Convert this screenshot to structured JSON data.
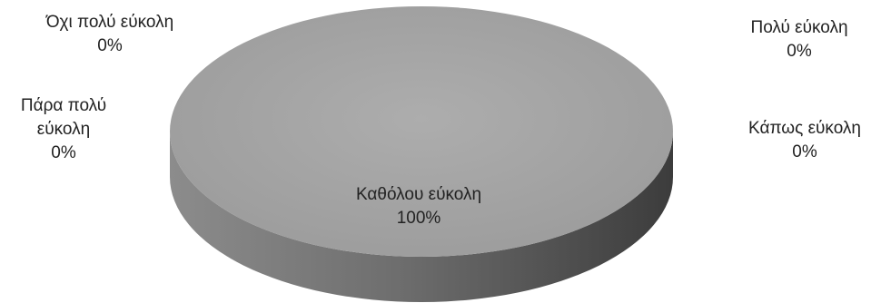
{
  "chart_data": {
    "type": "pie",
    "style": "3d",
    "legend": "none",
    "colors": {
      "slice_top": "#a6a6a6",
      "slice_side_dark": "#3c3c3c",
      "slice_side_light": "#8c8c8c",
      "label_text": "#222222"
    },
    "slices": [
      {
        "label": [
          "Όχι πολύ εύκολη"
        ],
        "value": 0,
        "percent_label": "0%"
      },
      {
        "label": [
          "Πολύ εύκολη"
        ],
        "value": 0,
        "percent_label": "0%"
      },
      {
        "label": [
          "Πάρα πολύ",
          "εύκολη"
        ],
        "value": 0,
        "percent_label": "0%"
      },
      {
        "label": [
          "Κάπως εύκολη"
        ],
        "value": 0,
        "percent_label": "0%"
      },
      {
        "label": [
          "Καθόλου εύκολη"
        ],
        "value": 100,
        "percent_label": "100%"
      }
    ]
  }
}
